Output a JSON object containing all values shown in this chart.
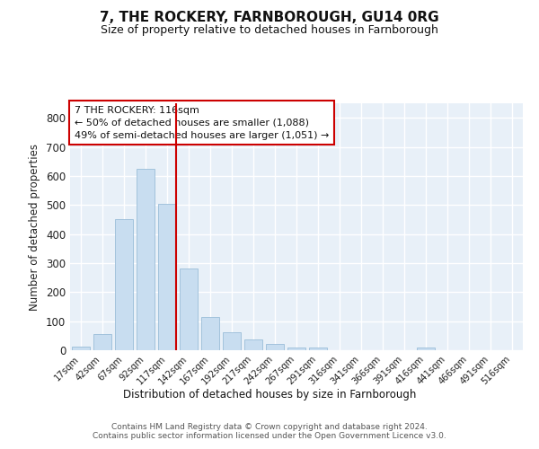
{
  "title": "7, THE ROCKERY, FARNBOROUGH, GU14 0RG",
  "subtitle": "Size of property relative to detached houses in Farnborough",
  "xlabel": "Distribution of detached houses by size in Farnborough",
  "ylabel": "Number of detached properties",
  "bar_color": "#c8ddf0",
  "bar_edge_color": "#9abdd8",
  "categories": [
    "17sqm",
    "42sqm",
    "67sqm",
    "92sqm",
    "117sqm",
    "142sqm",
    "167sqm",
    "192sqm",
    "217sqm",
    "242sqm",
    "267sqm",
    "291sqm",
    "316sqm",
    "341sqm",
    "366sqm",
    "391sqm",
    "416sqm",
    "441sqm",
    "466sqm",
    "491sqm",
    "516sqm"
  ],
  "values": [
    12,
    55,
    450,
    625,
    505,
    280,
    115,
    62,
    37,
    22,
    10,
    8,
    0,
    0,
    0,
    0,
    10,
    0,
    0,
    0,
    0
  ],
  "vline_bar_index": 4,
  "vline_color": "#cc0000",
  "annotation_line1": "7 THE ROCKERY: 116sqm",
  "annotation_line2": "← 50% of detached houses are smaller (1,088)",
  "annotation_line3": "49% of semi-detached houses are larger (1,051) →",
  "ylim": [
    0,
    850
  ],
  "yticks": [
    0,
    100,
    200,
    300,
    400,
    500,
    600,
    700,
    800
  ],
  "fig_background": "#ffffff",
  "plot_background": "#e8f0f8",
  "grid_color": "#ffffff",
  "footer_line1": "Contains HM Land Registry data © Crown copyright and database right 2024.",
  "footer_line2": "Contains public sector information licensed under the Open Government Licence v3.0."
}
